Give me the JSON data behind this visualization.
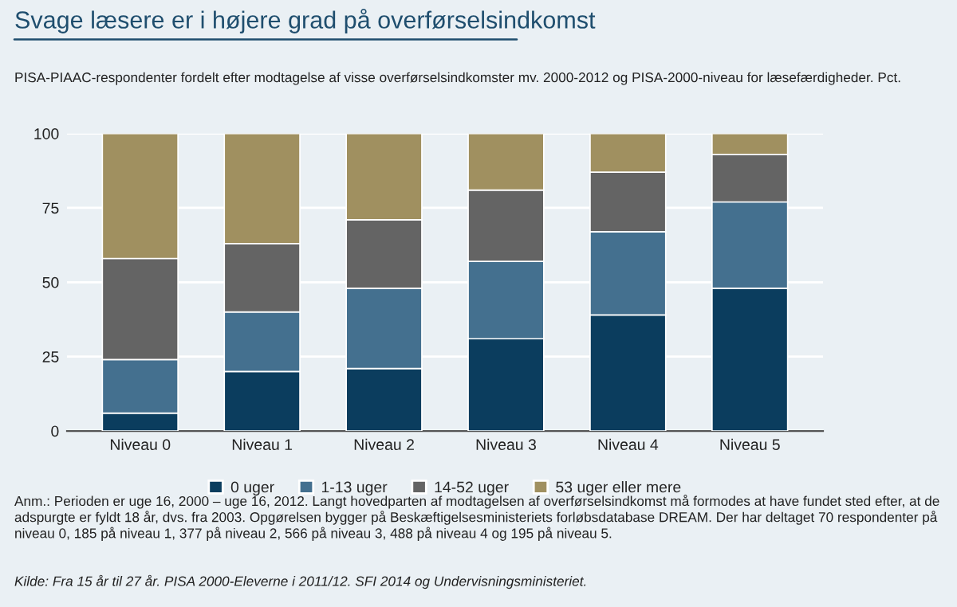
{
  "chart_data": {
    "type": "bar",
    "stacked": true,
    "title": "Svage læsere er i højere grad på overførselsindkomst",
    "subtitle": "PISA-PIAAC-respondenter fordelt efter modtagelse af visse overførselsindkomster mv. 2000-2012 og PISA-2000-niveau for læsefærdigheder. Pct.",
    "categories": [
      "Niveau 0",
      "Niveau 1",
      "Niveau 2",
      "Niveau 3",
      "Niveau 4",
      "Niveau 5"
    ],
    "series": [
      {
        "name": "0 uger",
        "color": "#0b3d5e",
        "values": [
          6,
          20,
          21,
          31,
          39,
          48
        ]
      },
      {
        "name": "1-13 uger",
        "color": "#44708f",
        "values": [
          18,
          20,
          27,
          26,
          28,
          29
        ]
      },
      {
        "name": "14-52 uger",
        "color": "#646464",
        "values": [
          34,
          23,
          23,
          24,
          20,
          16
        ]
      },
      {
        "name": "53 uger eller mere",
        "color": "#a09060",
        "values": [
          42,
          37,
          29,
          19,
          13,
          7
        ]
      }
    ],
    "ylim": [
      0,
      100
    ],
    "yticks": [
      0,
      25,
      50,
      75,
      100
    ],
    "grid": "y",
    "legend": "bottom",
    "annotations": [
      "Anm.: Perioden er uge 16, 2000 – uge 16, 2012. Langt hovedparten af modtagelsen af overførselsindkomst må formodes at have fundet sted efter, at de adspurgte er fyldt 18 år, dvs. fra 2003. Opgørelsen bygger på Beskæftigelsesministeriets forløbsdatabase DREAM. Der har deltaget 70 respondenter på niveau 0, 185 på niveau 1, 377 på niveau 2, 566 på niveau 3, 488 på niveau 4 og 195 på niveau 5.",
      "Kilde: Fra 15 år til 27 år. PISA 2000-Eleverne i 2011/12. SFI 2014 og Undervisningsministeriet."
    ]
  }
}
